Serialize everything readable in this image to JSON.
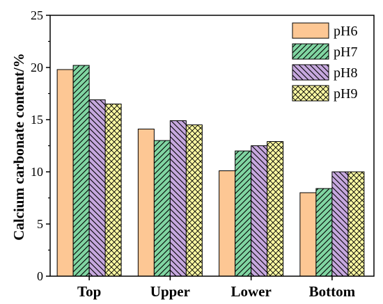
{
  "chart_data": {
    "type": "bar",
    "categories": [
      "Top",
      "Upper",
      "Lower",
      "Bottom"
    ],
    "series": [
      {
        "name": "pH6",
        "values": [
          19.8,
          14.1,
          10.1,
          8.0
        ],
        "color": "#fdc794",
        "pattern": "solid"
      },
      {
        "name": "pH7",
        "values": [
          20.2,
          13.0,
          12.0,
          8.4
        ],
        "color": "#80d5a2",
        "pattern": "diagonal-forward"
      },
      {
        "name": "pH8",
        "values": [
          16.9,
          14.9,
          12.5,
          10.0
        ],
        "color": "#c6a8de",
        "pattern": "diagonal-back"
      },
      {
        "name": "pH9",
        "values": [
          16.5,
          14.5,
          12.9,
          10.0
        ],
        "color": "#fbf8a2",
        "pattern": "crosshatch"
      }
    ],
    "title": "",
    "xlabel": "",
    "ylabel": "Calcium carbonate content/%",
    "ylim": [
      0,
      25
    ],
    "yticks": [
      0,
      5,
      10,
      15,
      20,
      25
    ],
    "grid": false,
    "legend_position": "top-right"
  }
}
